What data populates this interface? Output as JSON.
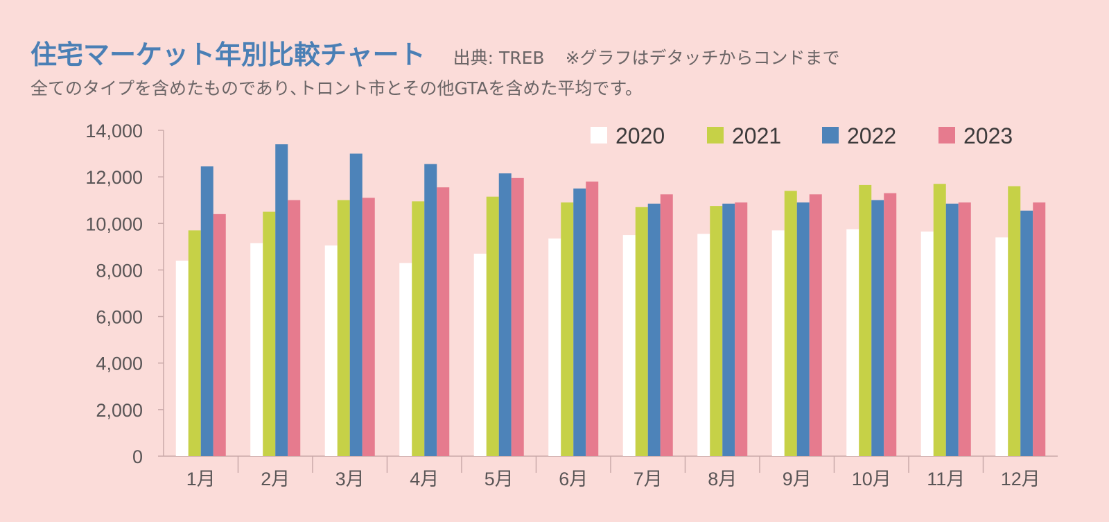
{
  "chart_data": {
    "type": "bar",
    "title": "住宅マーケット年別比較チャート",
    "source": "出典: TREB",
    "note": "※グラフはデタッチからコンドまで",
    "subtitle": "全てのタイプを含めたものであり､トロント市とその他GTAを含めた平均です。",
    "categories": [
      "1月",
      "2月",
      "3月",
      "4月",
      "5月",
      "6月",
      "7月",
      "8月",
      "9月",
      "10月",
      "11月",
      "12月"
    ],
    "series": [
      {
        "name": "2020",
        "color": "#ffffff",
        "values": [
          8400,
          9150,
          9050,
          8300,
          8700,
          9350,
          9500,
          9550,
          9700,
          9750,
          9650,
          9400
        ]
      },
      {
        "name": "2021",
        "color": "#c6d147",
        "values": [
          9700,
          10500,
          11000,
          10950,
          11150,
          10900,
          10700,
          10750,
          11400,
          11650,
          11700,
          11600
        ]
      },
      {
        "name": "2022",
        "color": "#4d83b9",
        "values": [
          12450,
          13400,
          13000,
          12550,
          12150,
          11500,
          10850,
          10850,
          10900,
          11000,
          10850,
          10550
        ]
      },
      {
        "name": "2023",
        "color": "#e67b8e",
        "values": [
          10400,
          11000,
          11100,
          11550,
          11950,
          11800,
          11250,
          10900,
          11250,
          11300,
          10900,
          10900
        ]
      }
    ],
    "ylim": [
      0,
      14000
    ],
    "yticks": [
      "0",
      "2,000",
      "4,000",
      "6,000",
      "8,000",
      "10,000",
      "12,000",
      "14,000"
    ],
    "legend": "top-right",
    "xlabel": "",
    "ylabel": ""
  }
}
